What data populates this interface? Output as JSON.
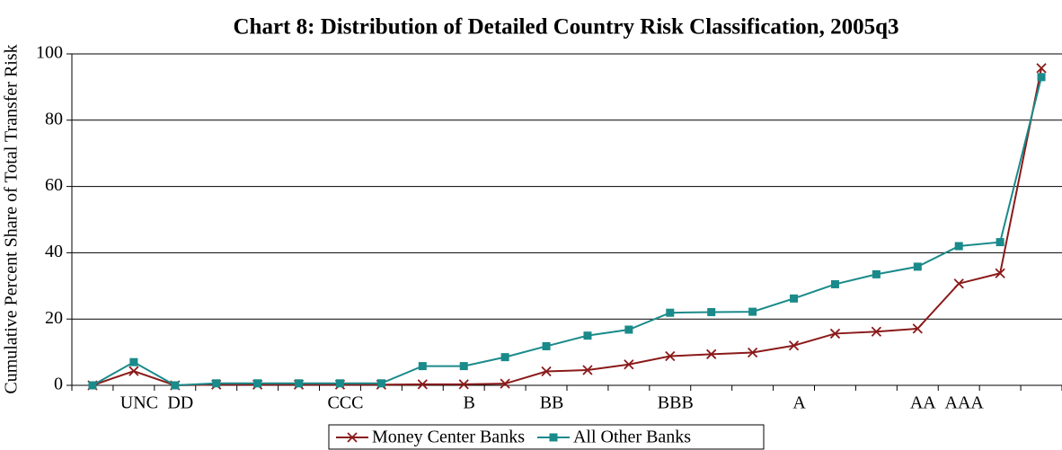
{
  "chart_data": {
    "type": "line",
    "title": "Chart 8: Distribution of Detailed Country Risk Classification, 2005q3",
    "y_label": "Cumulative Percent Share of Total Transfer Risk",
    "categories": [
      null,
      "UNC",
      "DD",
      null,
      null,
      null,
      "CCC",
      null,
      null,
      "B",
      null,
      "BB",
      null,
      null,
      "BBB",
      null,
      null,
      "A",
      null,
      null,
      "AA",
      "AAA",
      null,
      null
    ],
    "series": [
      {
        "name": "Money Center Banks",
        "color": "#8b1a1a",
        "marker": "x",
        "values": [
          0,
          4.3,
          0,
          0.2,
          0.2,
          0.2,
          0.2,
          0.2,
          0.3,
          0.3,
          0.5,
          4.2,
          4.6,
          6.3,
          8.8,
          9.4,
          9.9,
          12,
          15.6,
          16.2,
          17.1,
          30.7,
          33.8,
          95.7
        ]
      },
      {
        "name": "All Other Banks",
        "color": "#1a8a8a",
        "marker": "square",
        "values": [
          0,
          7,
          0,
          0.6,
          0.6,
          0.6,
          0.6,
          0.6,
          5.8,
          5.8,
          8.5,
          11.8,
          15,
          16.8,
          21.9,
          22.1,
          22.2,
          26.2,
          30.5,
          33.5,
          35.8,
          42,
          43.2,
          93
        ]
      }
    ],
    "ylim": [
      0,
      100
    ],
    "yticks": [
      0,
      20,
      40,
      60,
      80,
      100
    ],
    "grid": true,
    "legend": "bottom"
  }
}
